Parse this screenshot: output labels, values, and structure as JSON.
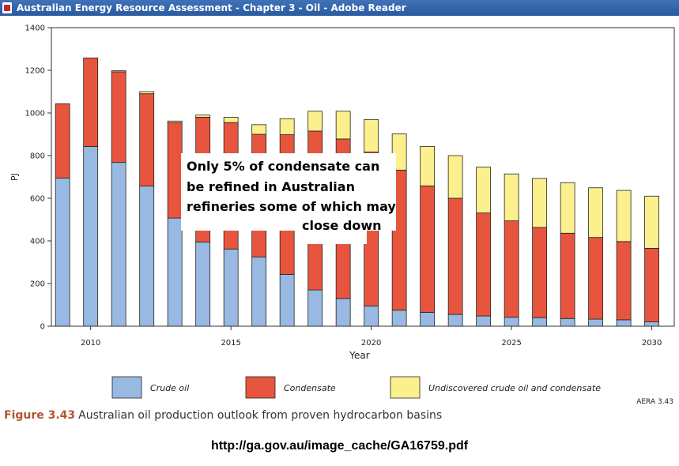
{
  "window": {
    "title": "Australian Energy Resource Assessment - Chapter 3 - Oil - Adobe Reader",
    "app_icon": "pdf-icon"
  },
  "figure": {
    "number": "Figure 3.43",
    "caption": "Australian oil production outlook from proven hydrocarbon basins",
    "credit": "AERA 3.43"
  },
  "source_url": "http://ga.gov.au/image_cache/GA16759.pdf",
  "chart_data": {
    "type": "bar",
    "stacked": true,
    "title": "",
    "xlabel": "Year",
    "ylabel": "PJ",
    "ylim": [
      0,
      1400
    ],
    "yticks": [
      0,
      200,
      400,
      600,
      800,
      1000,
      1200,
      1400
    ],
    "xticks": [
      2010,
      2015,
      2020,
      2025,
      2030
    ],
    "grid": false,
    "legend_position": "bottom",
    "categories": [
      2009,
      2010,
      2011,
      2012,
      2013,
      2014,
      2015,
      2016,
      2017,
      2018,
      2019,
      2020,
      2021,
      2022,
      2023,
      2024,
      2025,
      2026,
      2027,
      2028,
      2029,
      2030
    ],
    "series": [
      {
        "name": "Crude oil",
        "color": "#98b9e1",
        "values": [
          695,
          843,
          768,
          657,
          507,
          395,
          362,
          325,
          243,
          170,
          130,
          95,
          75,
          65,
          55,
          48,
          42,
          40,
          36,
          33,
          30,
          20
        ]
      },
      {
        "name": "Condensate",
        "color": "#e8553e",
        "values": [
          348,
          415,
          425,
          433,
          448,
          585,
          593,
          575,
          655,
          745,
          748,
          722,
          657,
          593,
          545,
          483,
          452,
          423,
          400,
          383,
          367,
          345
        ]
      },
      {
        "name": "Undiscovered crude oil and condensate",
        "color": "#fbf08d",
        "values": [
          0,
          0,
          5,
          10,
          7,
          10,
          25,
          45,
          75,
          93,
          130,
          152,
          170,
          185,
          200,
          215,
          220,
          230,
          237,
          233,
          240,
          245
        ]
      }
    ],
    "annotation": {
      "lines": [
        "Only 5% of condensate can",
        "be refined in Australian",
        "refineries some of which may",
        "close down"
      ]
    }
  }
}
